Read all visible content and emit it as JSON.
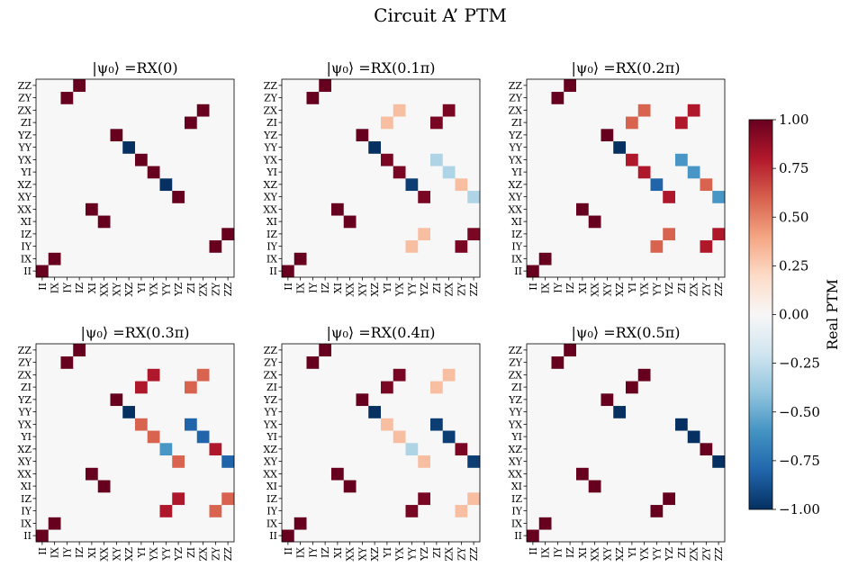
{
  "chart_data": {
    "type": "heatmap",
    "title": "Circuit A’ PTM",
    "basis": [
      "II",
      "IX",
      "IY",
      "IZ",
      "XI",
      "XX",
      "XY",
      "XZ",
      "YI",
      "YX",
      "YY",
      "YZ",
      "ZI",
      "ZX",
      "ZY",
      "ZZ"
    ],
    "colorbar": {
      "label": "Real PTM",
      "range": [
        -1.0,
        1.0
      ],
      "ticks": [
        "−1.00",
        "−0.75",
        "−0.50",
        "−0.25",
        "0.00",
        "0.25",
        "0.50",
        "0.75",
        "1.00"
      ],
      "colormap": [
        "#053061",
        "#2166ac",
        "#4393c3",
        "#92c5de",
        "#d1e5f0",
        "#f7f7f7",
        "#fddbc7",
        "#f4a582",
        "#d6604d",
        "#b2182b",
        "#67001f"
      ]
    },
    "panels": [
      {
        "title": "|ψ₀⟩ =RX(0)",
        "angle": 0
      },
      {
        "title": "|ψ₀⟩ =RX(0.1π)",
        "angle": 0.1
      },
      {
        "title": "|ψ₀⟩ =RX(0.2π)",
        "angle": 0.2
      },
      {
        "title": "|ψ₀⟩ =RX(0.3π)",
        "angle": 0.3
      },
      {
        "title": "|ψ₀⟩ =RX(0.4π)",
        "angle": 0.4
      },
      {
        "title": "|ψ₀⟩ =RX(0.5π)",
        "angle": 0.5
      }
    ]
  }
}
